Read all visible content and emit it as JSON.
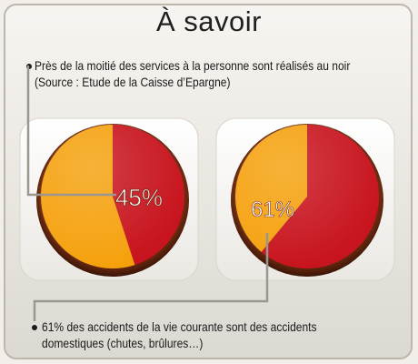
{
  "title": "À savoir",
  "notes": {
    "first": [
      "Près de la moitié des services à la personne sont réalisés au noir",
      "(Source : Etude de la Caisse d’Epargne)"
    ],
    "second": [
      "61% des accidents de la vie courante sont des accidents",
      "domestiques (chutes, brûlures…)"
    ]
  },
  "colors": {
    "highlight": "#c8141e",
    "rest": "#f5a10d"
  },
  "chart_data": [
    {
      "type": "pie",
      "label": "45%",
      "values": [
        45,
        55
      ],
      "colors": [
        "#c8141e",
        "#f5a10d"
      ]
    },
    {
      "type": "pie",
      "label": "61%",
      "values": [
        61,
        39
      ],
      "colors": [
        "#c8141e",
        "#f5a10d"
      ]
    }
  ]
}
